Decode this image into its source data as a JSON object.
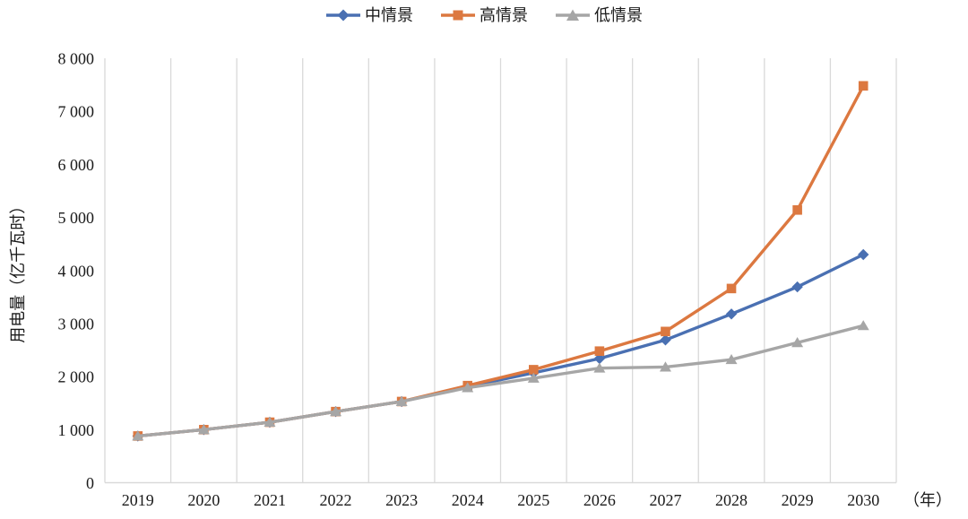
{
  "chart_data": {
    "type": "line",
    "title": "",
    "categories": [
      "2019",
      "2020",
      "2021",
      "2022",
      "2023",
      "2024",
      "2025",
      "2026",
      "2027",
      "2028",
      "2029",
      "2030"
    ],
    "series": [
      {
        "name": "中情景",
        "color": "#4A70B2",
        "marker": "diamond",
        "values": [
          880,
          1000,
          1140,
          1340,
          1530,
          1810,
          2070,
          2340,
          2690,
          3180,
          3690,
          4300
        ]
      },
      {
        "name": "高情景",
        "color": "#DC7840",
        "marker": "square",
        "values": [
          880,
          1000,
          1140,
          1340,
          1530,
          1830,
          2130,
          2480,
          2850,
          3660,
          5140,
          7480
        ]
      },
      {
        "name": "低情景",
        "color": "#A6A6A6",
        "marker": "triangle",
        "values": [
          880,
          1000,
          1140,
          1340,
          1530,
          1790,
          1970,
          2160,
          2180,
          2320,
          2640,
          2960
        ]
      }
    ],
    "ylabel": "用电量（亿千瓦时）",
    "x_unit_label": "（年）",
    "ylim": [
      0,
      8000
    ],
    "ytick_values": [
      0,
      1000,
      2000,
      3000,
      4000,
      5000,
      6000,
      7000,
      8000
    ],
    "ytick_labels": [
      "0",
      "1 000",
      "2 000",
      "3 000",
      "4 000",
      "5 000",
      "6 000",
      "7 000",
      "8 000"
    ],
    "grid": "vertical-only",
    "legend_position": "top-center",
    "gridline_color": "#D9D9D9",
    "text_color": "#1a1a1a"
  }
}
